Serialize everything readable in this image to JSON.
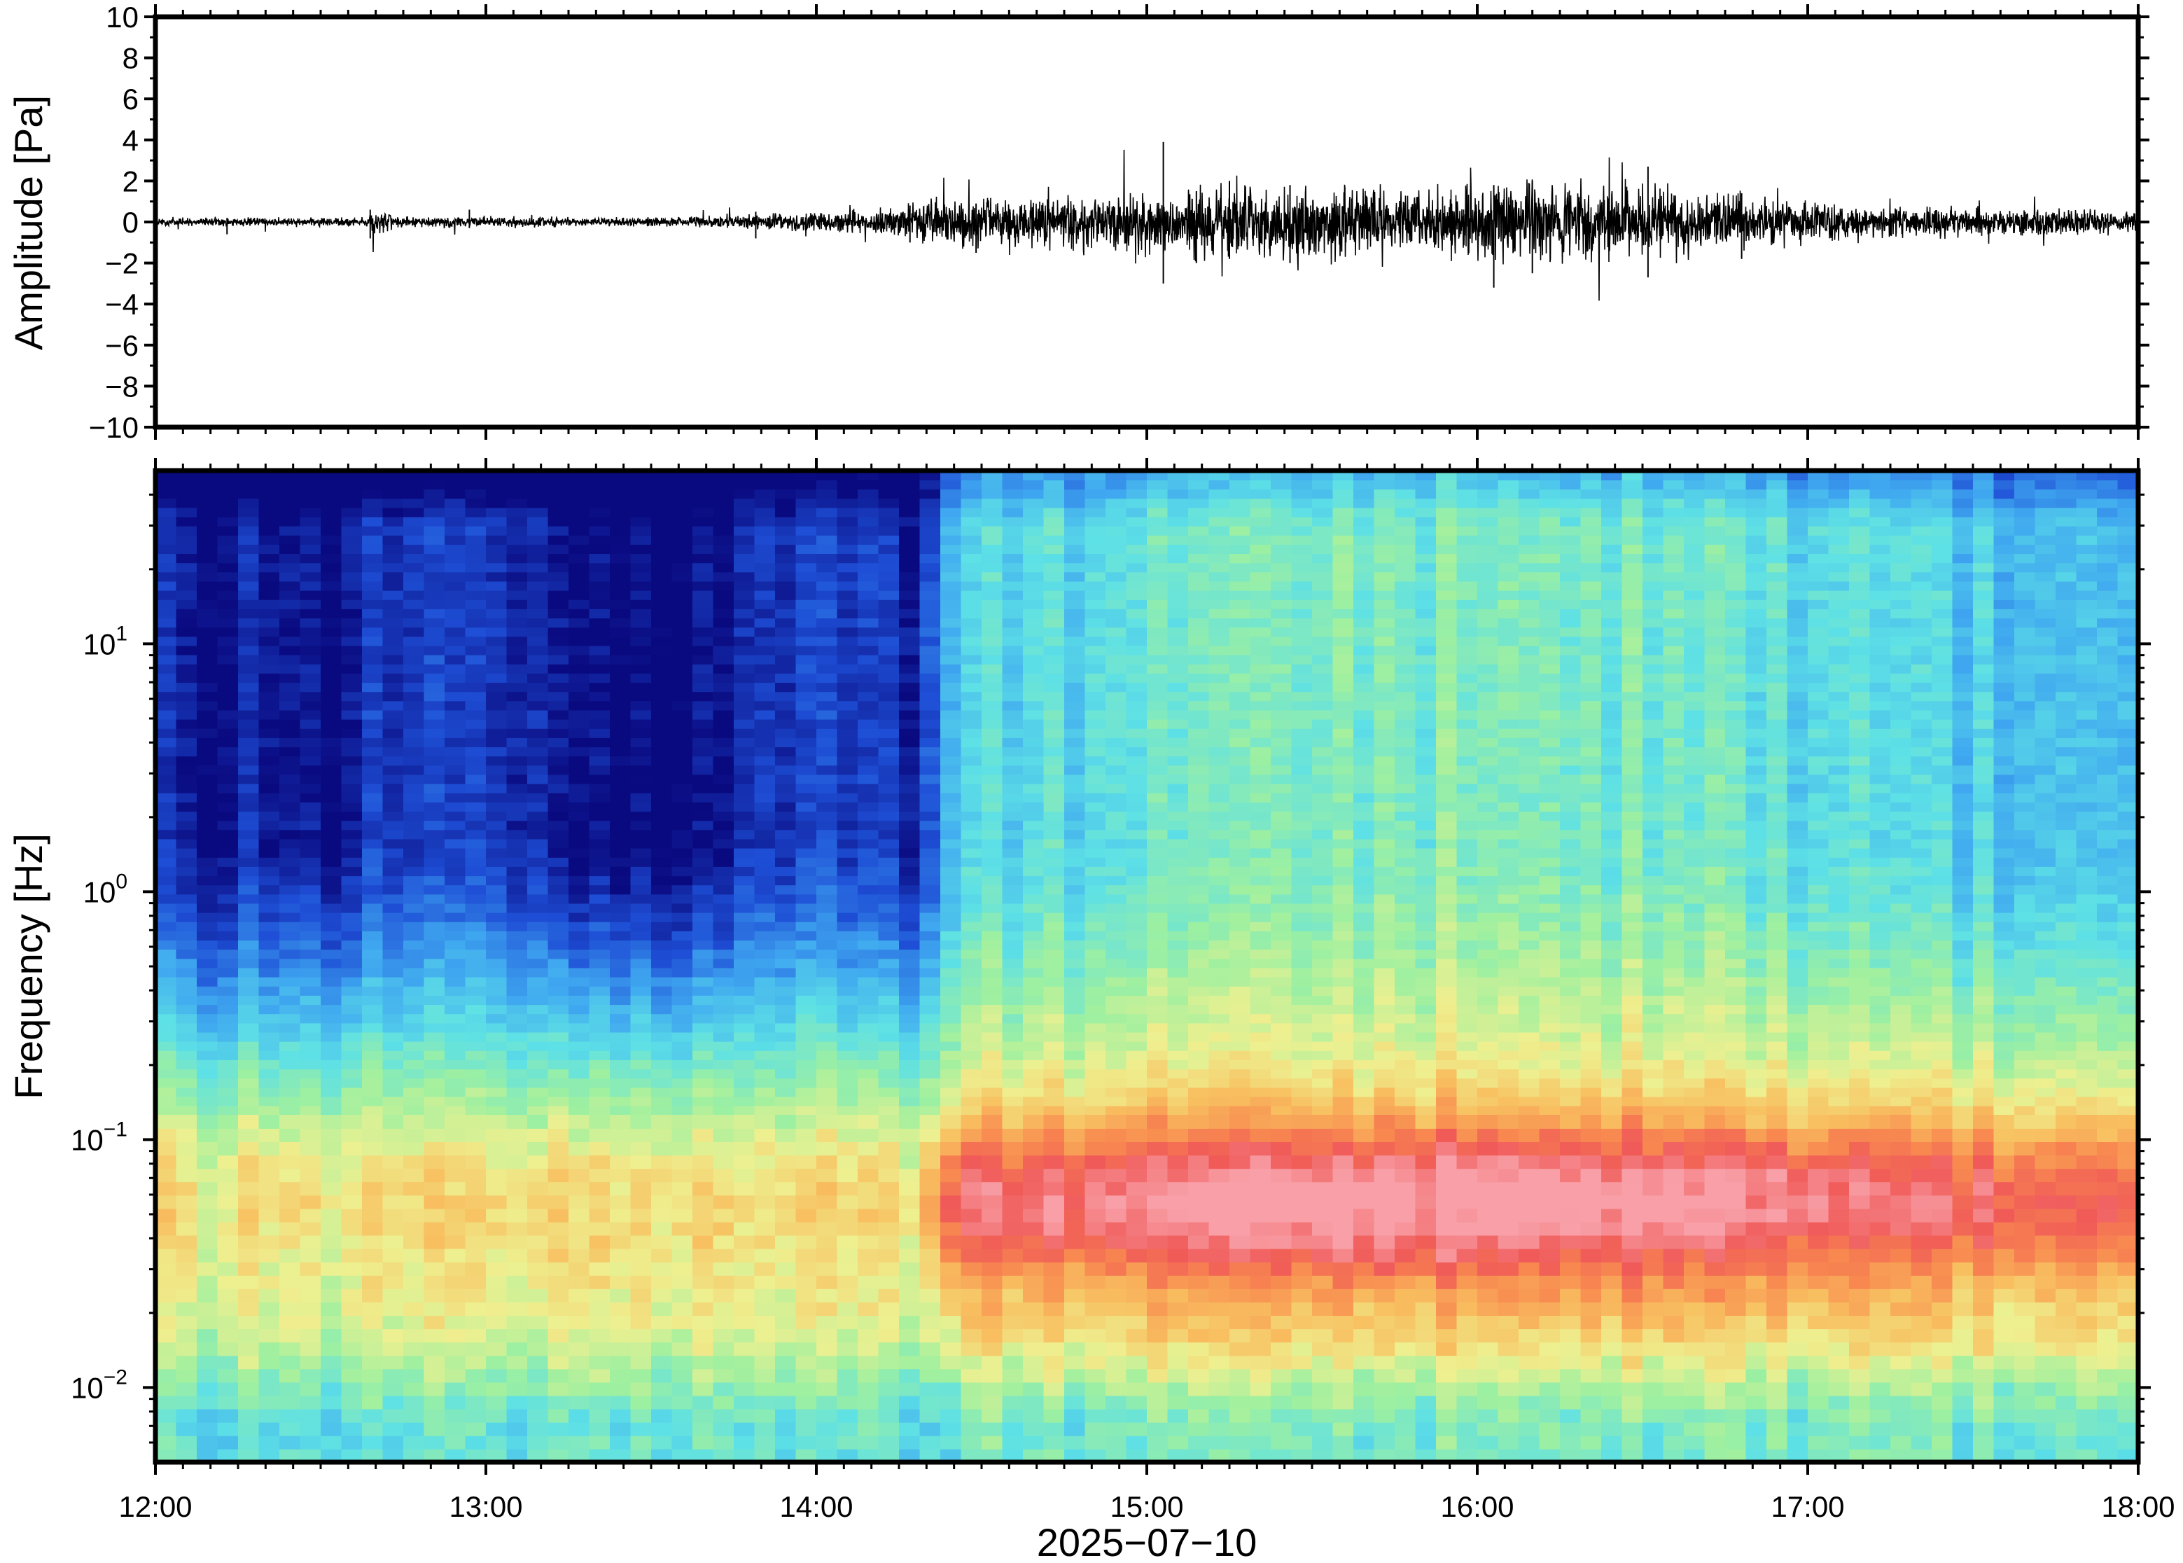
{
  "chart_data": [
    {
      "type": "line",
      "name": "waveform",
      "ylabel": "Amplitude [Pa]",
      "ylim": [
        -10,
        10
      ],
      "yticks": [
        10,
        8,
        6,
        4,
        2,
        0,
        -2,
        -4,
        -6,
        -8,
        -10
      ],
      "ytick_labels": [
        "10",
        "8",
        "6",
        "4",
        "2",
        "0",
        "−2",
        "−4",
        "−6",
        "−8",
        "−10"
      ],
      "x_range": [
        "12:00",
        "18:00"
      ],
      "envelope": {
        "x": [
          "12:00",
          "12:20",
          "12:38",
          "12:40",
          "12:45",
          "13:00",
          "13:20",
          "13:40",
          "13:50",
          "14:00",
          "14:15",
          "14:20",
          "14:30",
          "14:45",
          "15:00",
          "15:15",
          "15:30",
          "15:45",
          "16:00",
          "16:15",
          "16:30",
          "16:45",
          "17:00",
          "17:15",
          "17:30",
          "17:45",
          "18:00"
        ],
        "amplitude": [
          0.15,
          0.15,
          0.15,
          0.5,
          0.2,
          0.2,
          0.15,
          0.2,
          0.3,
          0.4,
          0.5,
          0.8,
          0.9,
          0.9,
          1.1,
          1.3,
          1.3,
          1.2,
          1.4,
          1.5,
          1.3,
          1.0,
          0.8,
          0.6,
          0.5,
          0.5,
          0.4
        ]
      },
      "spikes": [
        {
          "x": "12:13",
          "max": 0.2,
          "min": -0.6
        },
        {
          "x": "12:39",
          "max": 0.6,
          "min": -0.8
        },
        {
          "x": "12:57",
          "max": 0.6,
          "min": -0.3
        },
        {
          "x": "13:49",
          "max": 0.5,
          "min": -0.8
        },
        {
          "x": "14:17",
          "max": 0.8,
          "min": -1.0
        },
        {
          "x": "14:29",
          "max": 0.9,
          "min": -1.5
        },
        {
          "x": "15:03",
          "max": 3.9,
          "min": -3.0
        },
        {
          "x": "15:09",
          "max": 1.5,
          "min": -2.0
        },
        {
          "x": "15:15",
          "max": 2.0,
          "min": -1.8
        },
        {
          "x": "15:26",
          "max": 1.8,
          "min": -2.0
        },
        {
          "x": "16:03",
          "max": 1.8,
          "min": -3.2
        },
        {
          "x": "16:10",
          "max": 2.0,
          "min": -2.5
        },
        {
          "x": "16:31",
          "max": 2.7,
          "min": -2.7
        },
        {
          "x": "16:48",
          "max": 1.4,
          "min": -1.8
        }
      ]
    },
    {
      "type": "heatmap",
      "name": "spectrogram",
      "ylabel": "Frequency [Hz]",
      "yscale": "log",
      "ylim": [
        0.005,
        50
      ],
      "yticks": [
        0.01,
        0.1,
        1,
        10
      ],
      "ytick_labels": [
        {
          "base": "10",
          "exp": "−2"
        },
        {
          "base": "10",
          "exp": "−1"
        },
        {
          "base": "10",
          "exp": "0"
        },
        {
          "base": "10",
          "exp": "1"
        }
      ],
      "colormap": [
        "#0a0a80",
        "#1e4fd6",
        "#3fa7f0",
        "#5de0e6",
        "#9ef0a0",
        "#eef090",
        "#f8c060",
        "#f88a50",
        "#f05a58",
        "#f8a0a8"
      ],
      "xticks": [
        "12:00",
        "13:00",
        "14:00",
        "15:00",
        "16:00",
        "17:00",
        "18:00"
      ],
      "xlabel": "2025−07−10"
    }
  ]
}
